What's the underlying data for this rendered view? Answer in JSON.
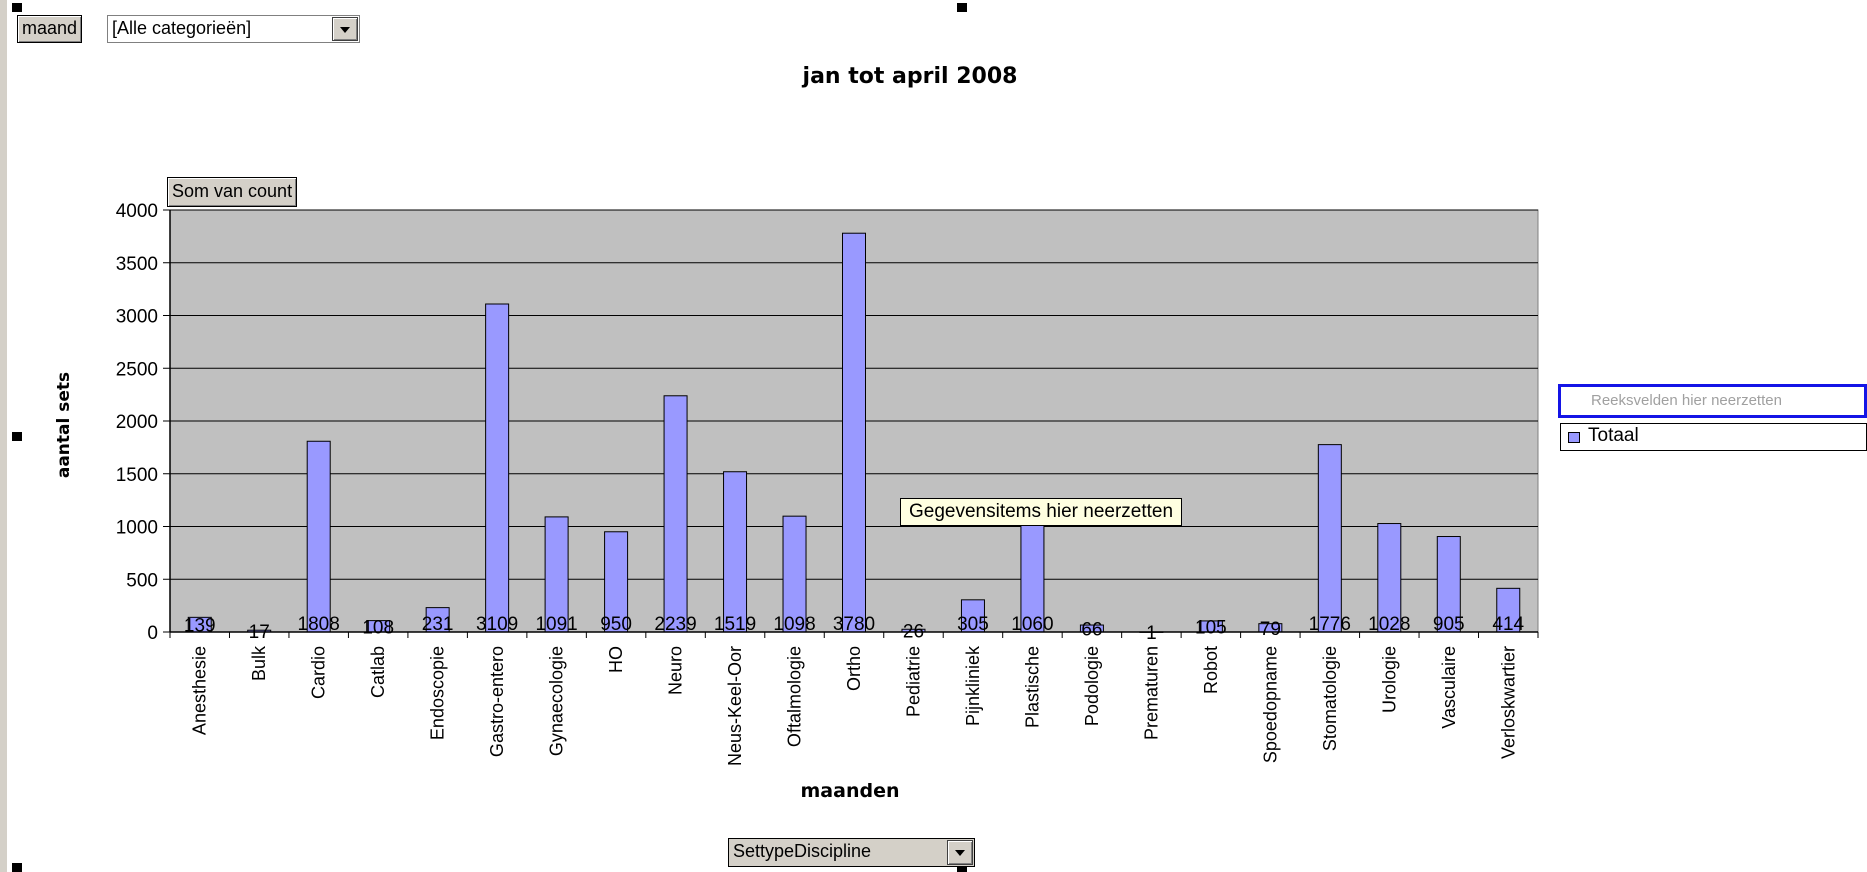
{
  "filters": {
    "page_field": "maand",
    "page_value": "[Alle categorieën]",
    "data_field": "Som van count",
    "category_field": "SettypeDiscipline"
  },
  "drop_zones": {
    "series": "Reeksvelden hier neerzetten",
    "data_items": "Gegevensitems hier neerzetten"
  },
  "colors": {
    "bar": "#9999ff",
    "plot_background": "#c0c0c0"
  },
  "chart_data": {
    "type": "bar",
    "title": "jan tot april 2008",
    "xlabel": "maanden",
    "ylabel": "aantal sets",
    "ylim": [
      0,
      4000
    ],
    "yticks": [
      0,
      500,
      1000,
      1500,
      2000,
      2500,
      3000,
      3500,
      4000
    ],
    "grid": true,
    "legend_position": "right",
    "categories": [
      "Anesthesie",
      "Bulk",
      "Cardio",
      "Catlab",
      "Endoscopie",
      "Gastro-entero",
      "Gynaecologie",
      "HO",
      "Neuro",
      "Neus-Keel-Oor",
      "Oftalmologie",
      "Ortho",
      "Pediatrie",
      "Pijnkliniek",
      "Plastische",
      "Podologie",
      "Prematuren",
      "Robot",
      "Spoedopname",
      "Stomatologie",
      "Urologie",
      "Vasculaire",
      "Verloskwartier"
    ],
    "series": [
      {
        "name": "Totaal",
        "values": [
          139,
          17,
          1808,
          108,
          231,
          3109,
          1091,
          950,
          2239,
          1519,
          1098,
          3780,
          26,
          305,
          1060,
          66,
          1,
          105,
          79,
          1776,
          1028,
          905,
          414
        ]
      }
    ]
  }
}
